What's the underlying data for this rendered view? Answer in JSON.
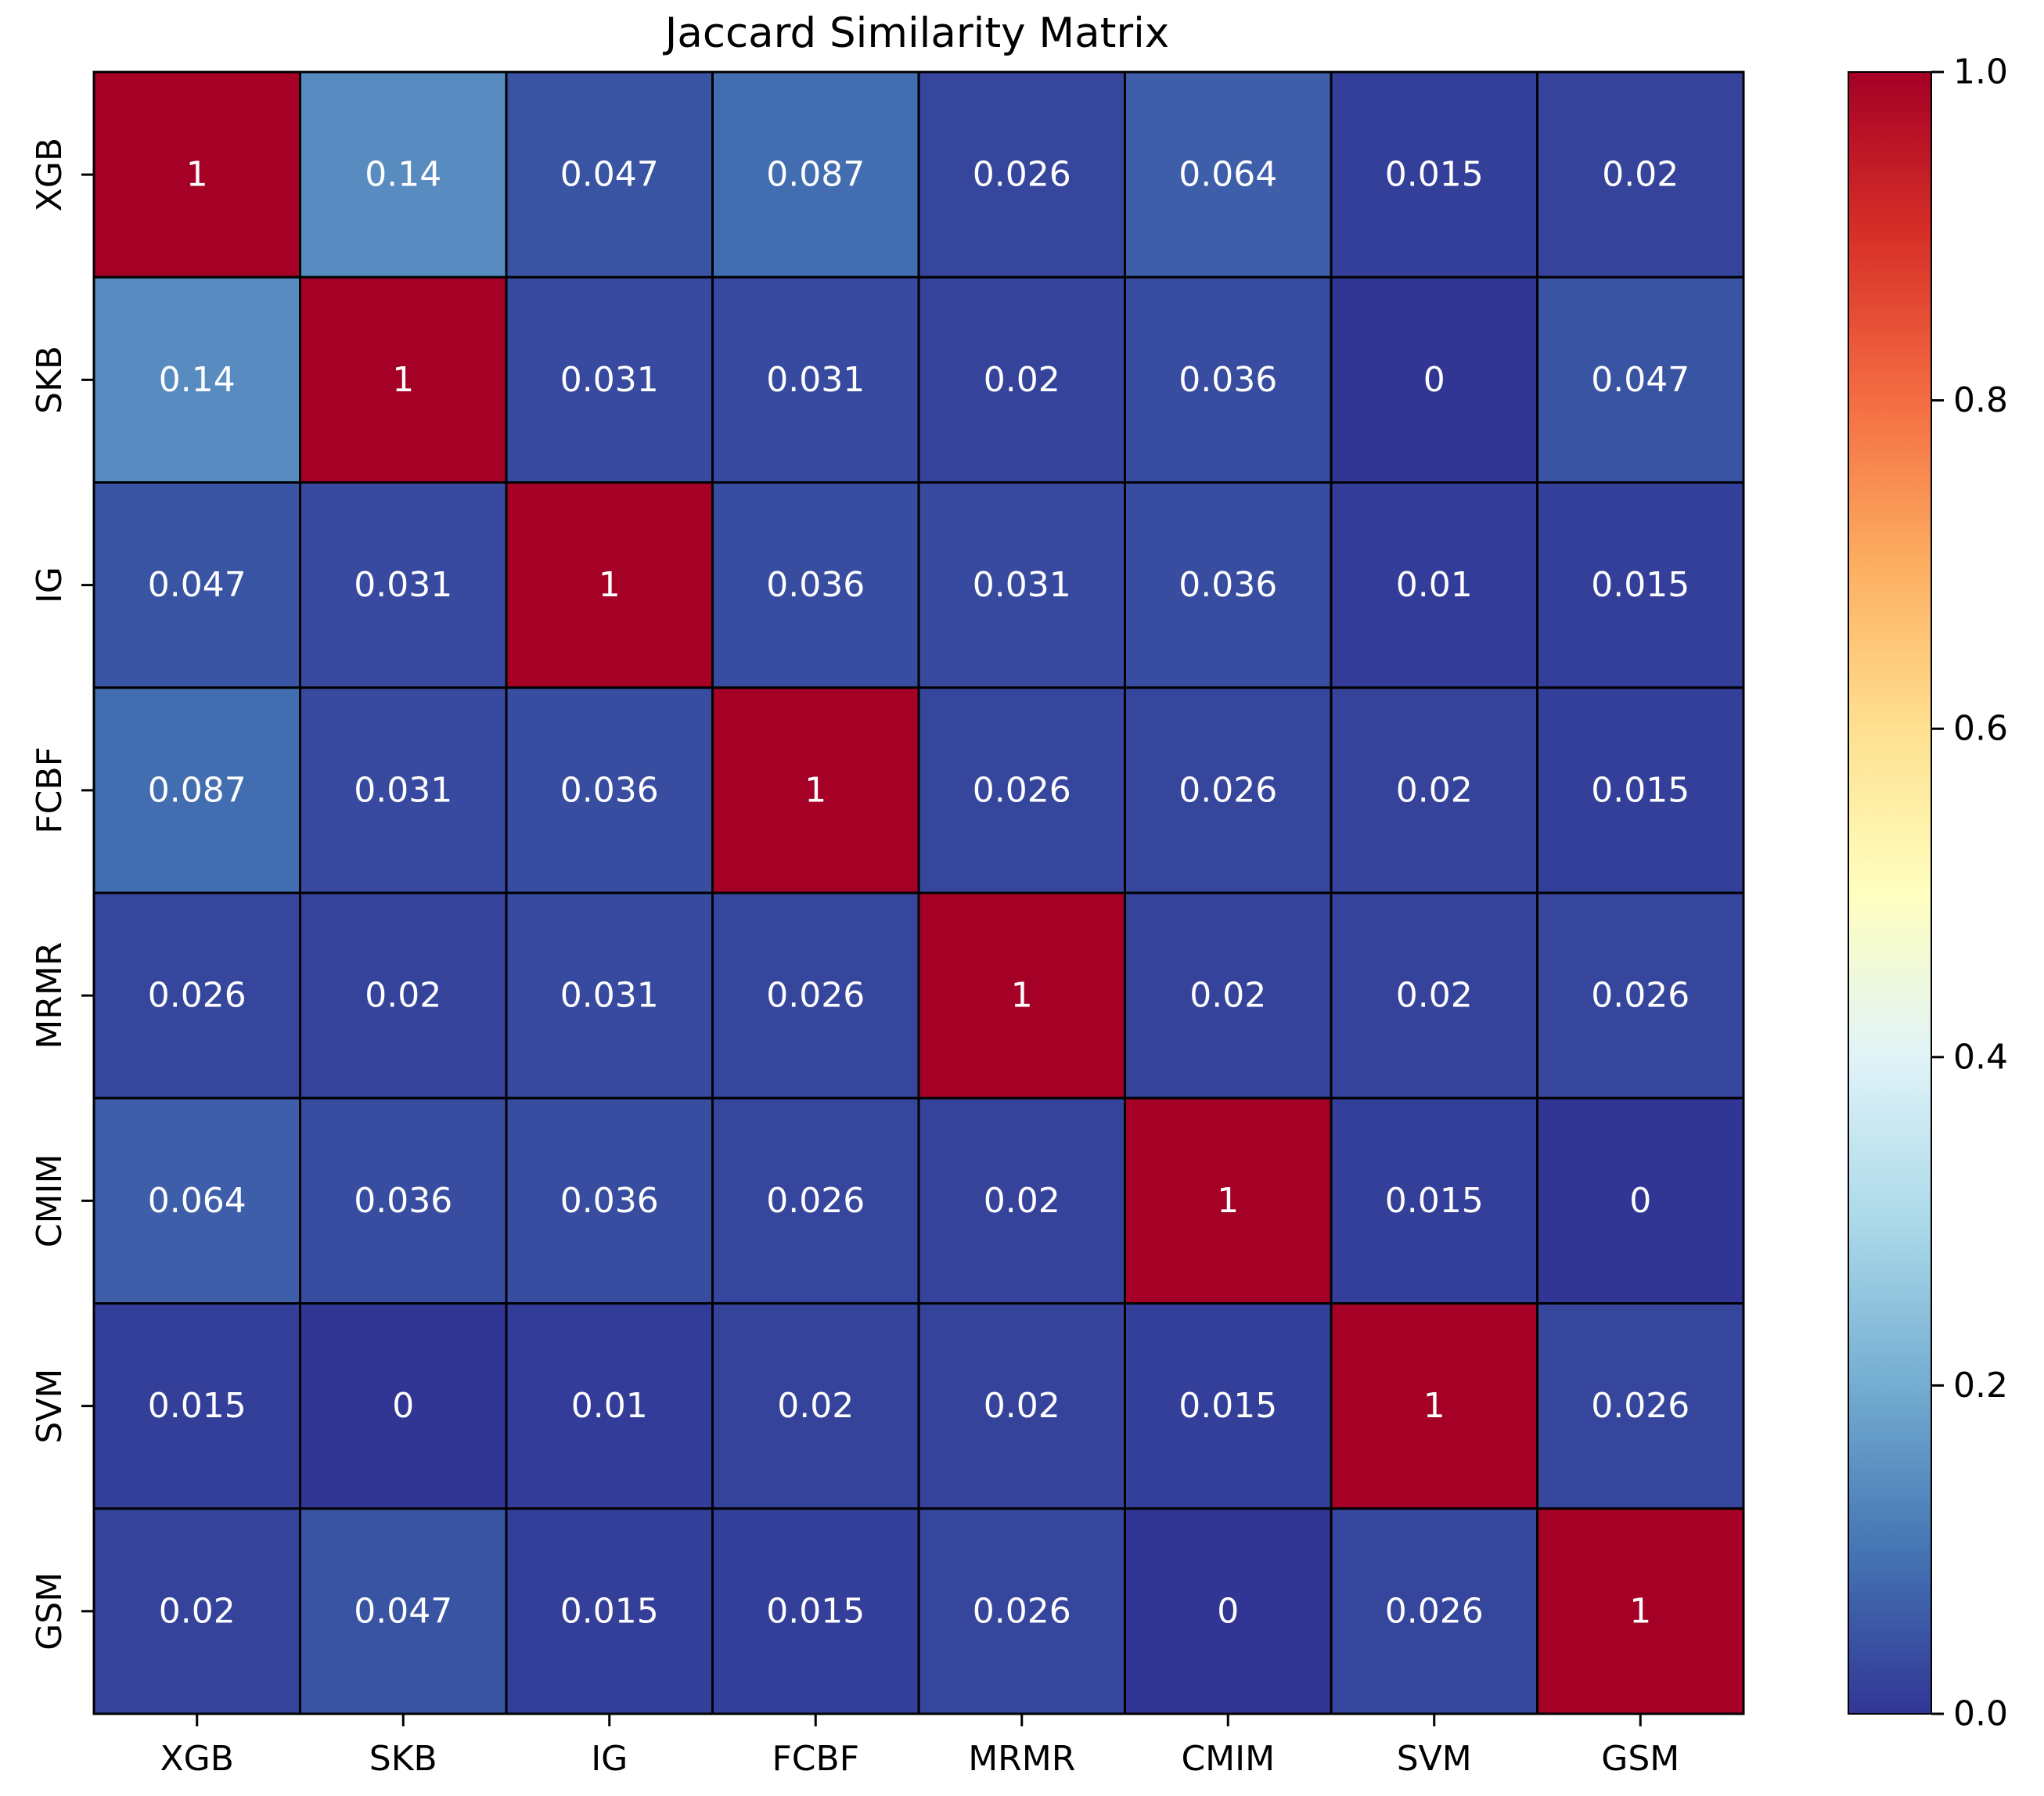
{
  "chart_data": {
    "type": "heatmap",
    "title": "Jaccard Similarity Matrix",
    "xlabel": "",
    "ylabel": "",
    "x_categories": [
      "XGB",
      "SKB",
      "IG",
      "FCBF",
      "MRMR",
      "CMIM",
      "SVM",
      "GSM"
    ],
    "y_categories": [
      "XGB",
      "SKB",
      "IG",
      "FCBF",
      "MRMR",
      "CMIM",
      "SVM",
      "GSM"
    ],
    "values": [
      [
        1,
        0.14,
        0.047,
        0.087,
        0.026,
        0.064,
        0.015,
        0.02
      ],
      [
        0.14,
        1,
        0.031,
        0.031,
        0.02,
        0.036,
        0,
        0.047
      ],
      [
        0.047,
        0.031,
        1,
        0.036,
        0.031,
        0.036,
        0.01,
        0.015
      ],
      [
        0.087,
        0.031,
        0.036,
        1,
        0.026,
        0.026,
        0.02,
        0.015
      ],
      [
        0.026,
        0.02,
        0.031,
        0.026,
        1,
        0.02,
        0.02,
        0.026
      ],
      [
        0.064,
        0.036,
        0.036,
        0.026,
        0.02,
        1,
        0.015,
        0
      ],
      [
        0.015,
        0,
        0.01,
        0.02,
        0.02,
        0.015,
        1,
        0.026
      ],
      [
        0.02,
        0.047,
        0.015,
        0.015,
        0.026,
        0,
        0.026,
        1
      ]
    ],
    "annotations": [
      [
        "1",
        "0.14",
        "0.047",
        "0.087",
        "0.026",
        "0.064",
        "0.015",
        "0.02"
      ],
      [
        "0.14",
        "1",
        "0.031",
        "0.031",
        "0.02",
        "0.036",
        "0",
        "0.047"
      ],
      [
        "0.047",
        "0.031",
        "1",
        "0.036",
        "0.031",
        "0.036",
        "0.01",
        "0.015"
      ],
      [
        "0.087",
        "0.031",
        "0.036",
        "1",
        "0.026",
        "0.026",
        "0.02",
        "0.015"
      ],
      [
        "0.026",
        "0.02",
        "0.031",
        "0.026",
        "1",
        "0.02",
        "0.02",
        "0.026"
      ],
      [
        "0.064",
        "0.036",
        "0.036",
        "0.026",
        "0.02",
        "1",
        "0.015",
        "0"
      ],
      [
        "0.015",
        "0",
        "0.01",
        "0.02",
        "0.02",
        "0.015",
        "1",
        "0.026"
      ],
      [
        "0.02",
        "0.047",
        "0.015",
        "0.015",
        "0.026",
        "0",
        "0.026",
        "1"
      ]
    ],
    "colormap": "RdYlBu_r",
    "colormap_stops": [
      "#313695",
      "#4575b4",
      "#74add1",
      "#abd9e9",
      "#e0f3f8",
      "#ffffbf",
      "#fee090",
      "#fdae61",
      "#f46d43",
      "#d73027",
      "#a50026"
    ],
    "vmin": 0,
    "vmax": 1,
    "colorbar": {
      "ticks": [
        0.0,
        0.2,
        0.4,
        0.6,
        0.8,
        1.0
      ],
      "tick_labels": [
        "0.0",
        "0.2",
        "0.4",
        "0.6",
        "0.8",
        "1.0"
      ]
    },
    "cell_border_color": "#000000",
    "annotation_color": "#ffffff"
  }
}
